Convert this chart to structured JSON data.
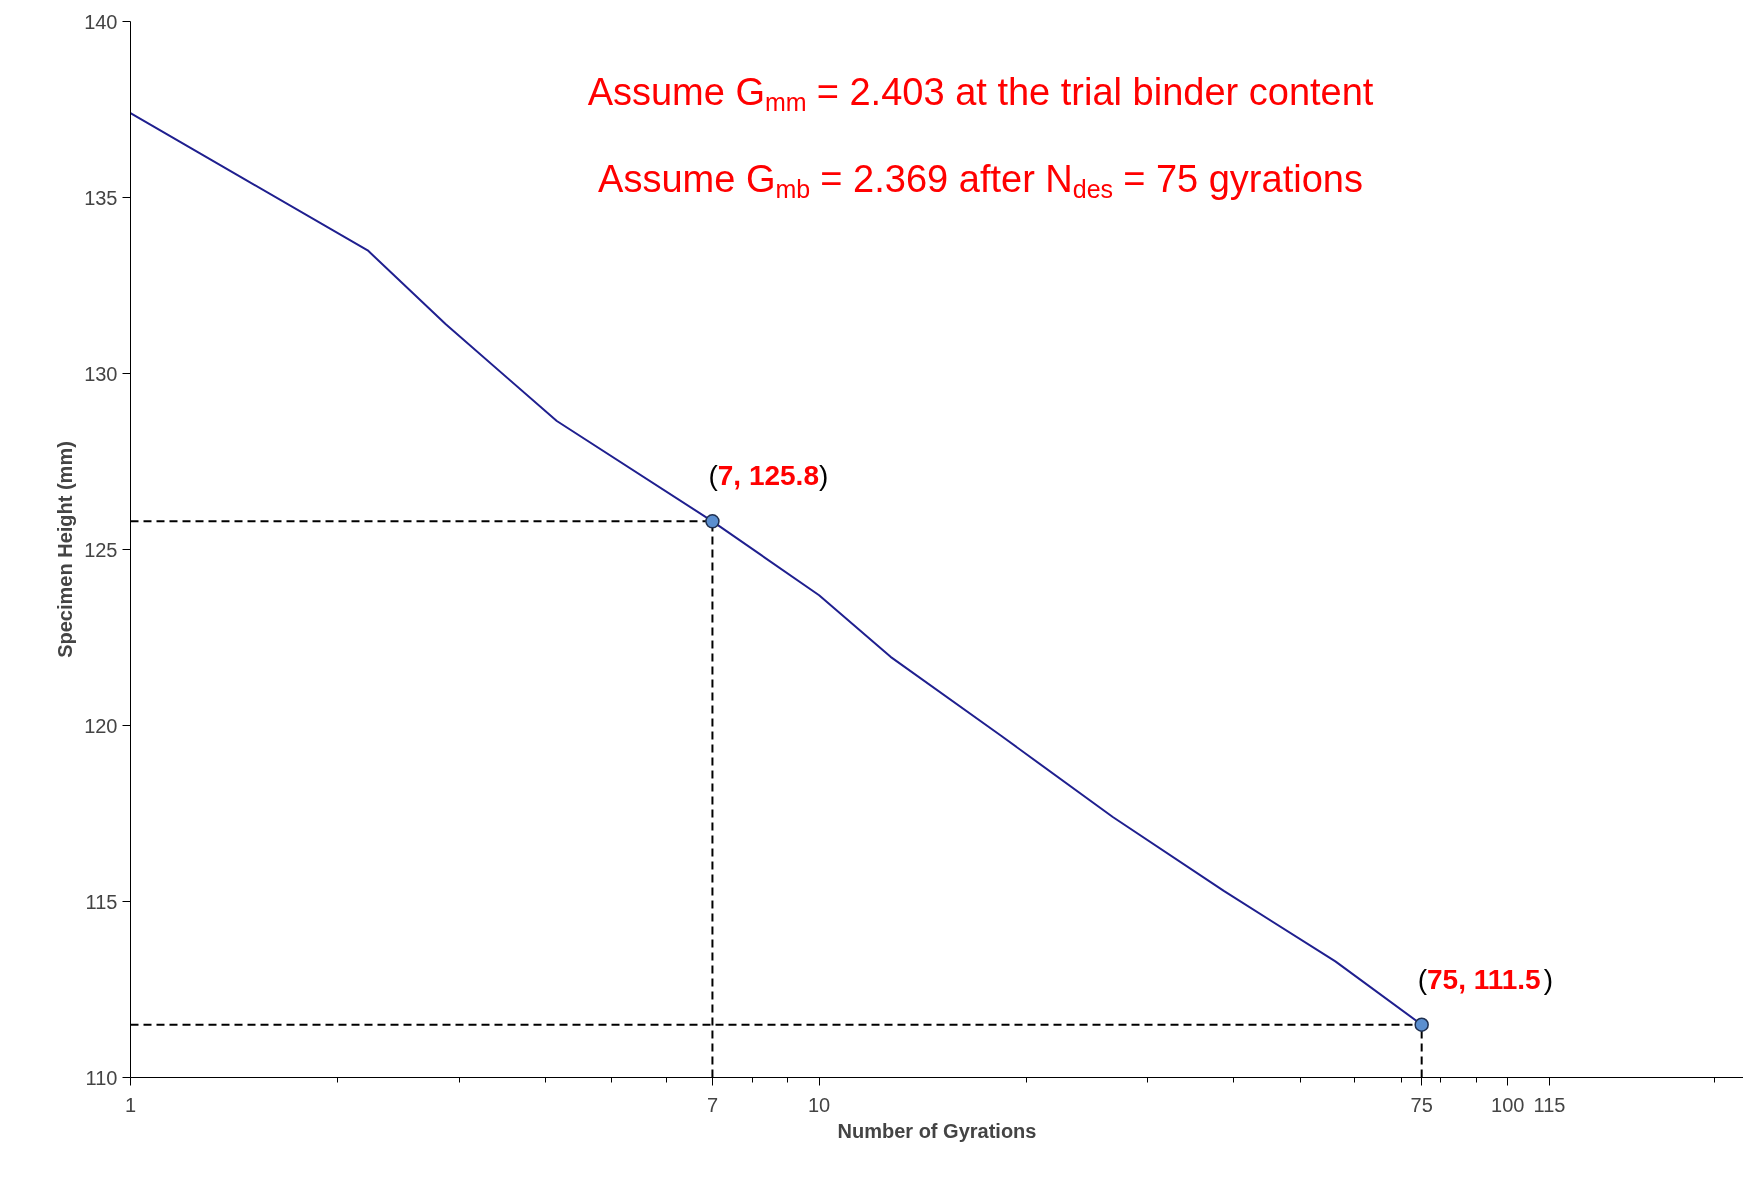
{
  "chart_data": {
    "type": "line",
    "xlabel": "Number of Gyrations",
    "ylabel": "Specimen Height (mm)",
    "log": "x",
    "xlim": [
      1,
      220
    ],
    "xticks": [
      1,
      7,
      10,
      75,
      100,
      115
    ],
    "ylim": [
      110,
      140
    ],
    "yticks": [
      110,
      115,
      120,
      125,
      130,
      135,
      140
    ],
    "grid": false,
    "series": [
      {
        "color": "#1f1f8f",
        "x": [
          1,
          1.47,
          2.21,
          2.87,
          4.16,
          7,
          10,
          12.7,
          18.4,
          26.7,
          38.7,
          56.2,
          75
        ],
        "values": [
          137.4,
          135.5,
          133.5,
          131.4,
          128.65,
          125.8,
          123.7,
          121.95,
          119.7,
          117.4,
          115.3,
          113.3,
          111.5
        ],
        "line_style": "solid"
      },
      {
        "color": "#000000",
        "x": [
          1,
          7
        ],
        "values": [
          125.8,
          125.8
        ],
        "line_style": "dashed"
      },
      {
        "color": "#000000",
        "x": [
          7,
          7
        ],
        "values": [
          110,
          125.8
        ],
        "line_style": "dashed"
      },
      {
        "color": "#000000",
        "x": [
          1,
          75
        ],
        "values": [
          111.5,
          111.5
        ],
        "line_style": "dashed"
      },
      {
        "color": "#000000",
        "x": [
          75,
          75
        ],
        "values": [
          110,
          111.5
        ],
        "line_style": "dashed"
      },
      {
        "type": "scatter",
        "marker": "circle",
        "color": "#5b8fd0",
        "x": [
          7,
          75
        ],
        "values": [
          125.8,
          111.5
        ]
      }
    ],
    "annotations": [
      "Assume G$_{mm}$ = 2.403 at the trial binder content",
      "Assume G$_{mb}$ = 2.369 after N$_{des}$ = 75 gyrations",
      {
        "text": "(7, 125.8)",
        "x": 7,
        "y": 125.8
      },
      {
        "text": "(75, 111.5)",
        "x": 75,
        "y": 111.5
      }
    ]
  }
}
